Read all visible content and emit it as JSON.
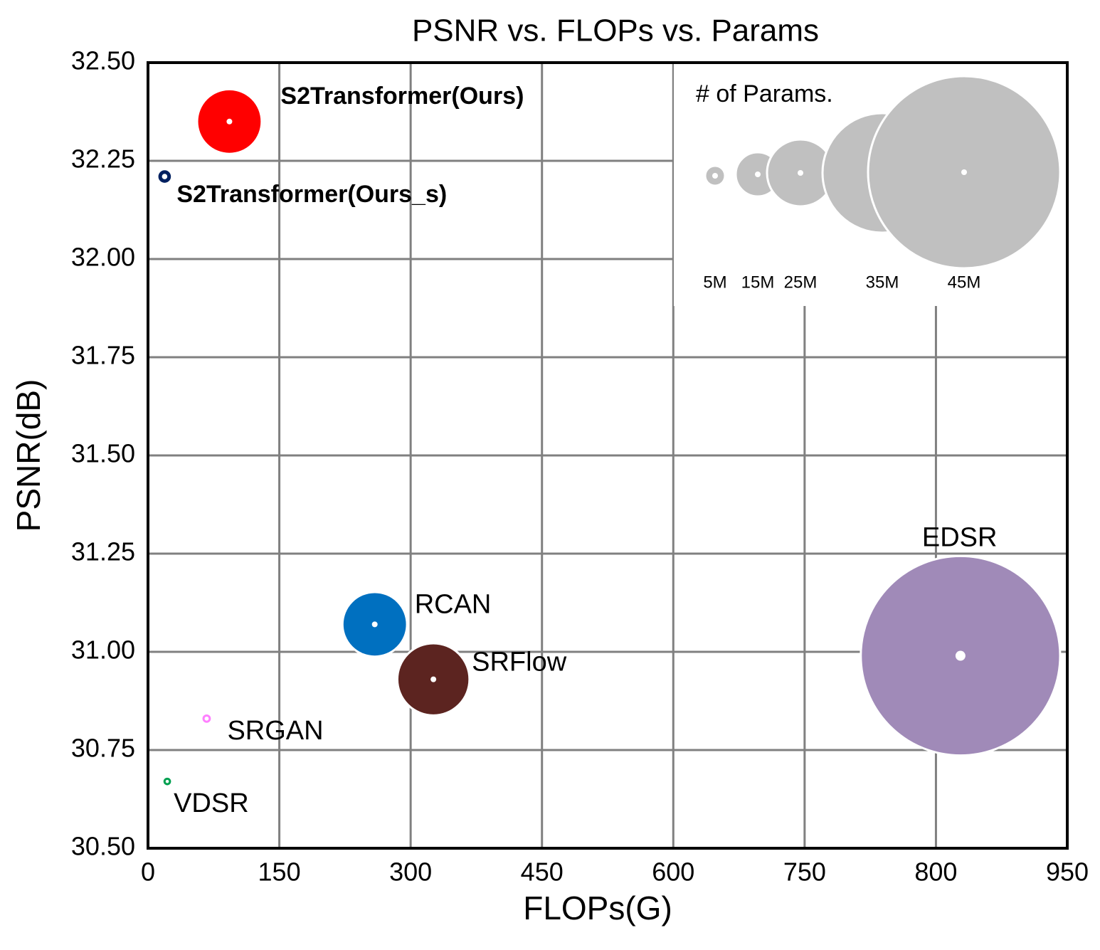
{
  "chart_data": {
    "type": "scatter",
    "title": "PSNR vs. FLOPs vs. Params",
    "x_label": "FLOPs(G)",
    "y_label": "PSNR(dB)",
    "series": [
      {
        "name": "S2Transformer(Ours)",
        "color": "#ff0000",
        "x": [
          93
        ],
        "values": [
          32.35
        ],
        "sizes": [
          24
        ]
      },
      {
        "name": "S2Transformer(Ours_s)",
        "color": "#002060",
        "x": [
          19
        ],
        "values": [
          32.21
        ],
        "sizes": [
          2
        ]
      },
      {
        "name": "RCAN",
        "color": "#0070c0",
        "x": [
          259
        ],
        "values": [
          31.07
        ],
        "sizes": [
          24
        ]
      },
      {
        "name": "SRFlow",
        "color": "#5c2420",
        "x": [
          326
        ],
        "values": [
          30.93
        ],
        "sizes": [
          26
        ]
      },
      {
        "name": "SRGAN",
        "color": "#ff80ff",
        "x": [
          67
        ],
        "values": [
          30.83
        ],
        "sizes": [
          1
        ]
      },
      {
        "name": "VDSR",
        "color": "#00a050",
        "x": [
          22
        ],
        "values": [
          30.67
        ],
        "sizes": [
          0.7
        ]
      },
      {
        "name": "EDSR",
        "color": "#a08ab8",
        "x": [
          828
        ],
        "values": [
          30.99
        ],
        "sizes": [
          46
        ]
      }
    ],
    "xlim": [
      0,
      950
    ],
    "xticks": [
      0,
      150,
      300,
      450,
      600,
      750,
      800,
      950
    ],
    "ylim": [
      30.5,
      32.5
    ],
    "yticks": [
      {
        "value": 30.5,
        "label": "30.50"
      },
      {
        "value": 30.75,
        "label": "30.75"
      },
      {
        "value": 31,
        "label": "31.00"
      },
      {
        "value": 31.25,
        "label": "31.25"
      },
      {
        "value": 31.5,
        "label": "31.50"
      },
      {
        "value": 31.75,
        "label": "31.75"
      },
      {
        "value": 32,
        "label": "32.00"
      },
      {
        "value": 32.25,
        "label": "32.25"
      },
      {
        "value": 32.5,
        "label": "32.50"
      }
    ],
    "grid": true,
    "size_legend": {
      "title": "# of Params.",
      "sizes": [
        5,
        15,
        25,
        35,
        45
      ],
      "labels": [
        "5M",
        "15M",
        "25M",
        "35M",
        "45M"
      ],
      "color": "#c0c0c0"
    }
  }
}
